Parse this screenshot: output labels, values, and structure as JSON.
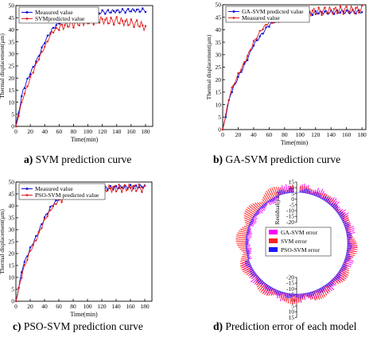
{
  "captions": {
    "a": {
      "letter": "a)",
      "text": "SVM prediction curve"
    },
    "b": {
      "letter": "b)",
      "text": "GA-SVM prediction curve"
    },
    "c": {
      "letter": "c)",
      "text": "PSO-SVM prediction curve"
    },
    "d": {
      "letter": "d)",
      "text": "Prediction error of each model"
    }
  },
  "colors": {
    "measured": "#1010d0",
    "predicted": "#e02020",
    "ga": "#ff00ff",
    "svm": "#ff2020",
    "pso": "#1a1aff"
  },
  "chart_data": [
    {
      "id": "a",
      "type": "line",
      "xlabel": "Time(min)",
      "ylabel": "Thermal displacement(μm)",
      "xlim": [
        0,
        190
      ],
      "ylim": [
        0,
        50
      ],
      "xticks": [
        0,
        20,
        40,
        60,
        80,
        100,
        120,
        140,
        160,
        180
      ],
      "yticks": [
        0,
        5,
        10,
        15,
        20,
        25,
        30,
        35,
        40,
        45,
        50
      ],
      "legend": [
        "Measured value",
        "SVMpredicted value"
      ],
      "legend_position": "top-left",
      "series": [
        {
          "name": "Measured value",
          "color": "#1010d0",
          "marker": "square",
          "x": [
            0,
            10,
            20,
            30,
            40,
            50,
            60,
            70,
            80,
            90,
            100,
            110,
            120,
            130,
            140,
            150,
            160,
            170,
            180
          ],
          "y": [
            0,
            15,
            22,
            28,
            35,
            40,
            43,
            44.5,
            45.5,
            46,
            46.5,
            47,
            47.3,
            47.5,
            47.7,
            47.8,
            48,
            48,
            48.1
          ]
        },
        {
          "name": "SVMpredicted value",
          "color": "#e02020",
          "marker": "circle",
          "x": [
            0,
            10,
            20,
            30,
            40,
            50,
            60,
            70,
            80,
            90,
            100,
            110,
            120,
            130,
            140,
            150,
            160,
            170,
            180
          ],
          "y": [
            0,
            12,
            20,
            27,
            33,
            39,
            41,
            42,
            42.5,
            43,
            43.5,
            43.8,
            44,
            43.5,
            43.8,
            43.2,
            42.8,
            42.5,
            41
          ]
        }
      ]
    },
    {
      "id": "b",
      "type": "line",
      "xlabel": "Time(min)",
      "ylabel": "Thermal displacement(μm)",
      "xlim": [
        0,
        185
      ],
      "ylim": [
        0,
        50
      ],
      "xticks": [
        0,
        20,
        40,
        60,
        80,
        100,
        120,
        140,
        160,
        180
      ],
      "yticks": [
        0,
        5,
        10,
        15,
        20,
        25,
        30,
        35,
        40,
        45,
        50
      ],
      "legend": [
        "GA-SVM predicted value",
        "Measured value"
      ],
      "legend_position": "top-left",
      "series": [
        {
          "name": "GA-SVM predicted value",
          "color": "#1010d0",
          "marker": "square",
          "x": [
            0,
            10,
            20,
            30,
            40,
            50,
            60,
            70,
            80,
            90,
            100,
            110,
            120,
            130,
            140,
            150,
            160,
            170,
            180
          ],
          "y": [
            0,
            14,
            21,
            27,
            34,
            38,
            42,
            44,
            45,
            46,
            46.3,
            46.5,
            46.8,
            47,
            47,
            47.2,
            47.3,
            47.2,
            47.3
          ]
        },
        {
          "name": "Measured value",
          "color": "#e02020",
          "marker": "circle",
          "x": [
            0,
            10,
            20,
            30,
            40,
            50,
            60,
            70,
            80,
            90,
            100,
            110,
            120,
            130,
            140,
            150,
            160,
            170,
            180
          ],
          "y": [
            0,
            15,
            22,
            28,
            35,
            40,
            43,
            44.5,
            45.5,
            46,
            46.5,
            47,
            47.3,
            47.5,
            47.7,
            47.8,
            48,
            48,
            48.1
          ]
        }
      ]
    },
    {
      "id": "c",
      "type": "line",
      "xlabel": "Time(min)",
      "ylabel": "Thermal displacement(μm)",
      "xlim": [
        0,
        190
      ],
      "ylim": [
        0,
        50
      ],
      "xticks": [
        0,
        20,
        40,
        60,
        80,
        100,
        120,
        140,
        160,
        180
      ],
      "yticks": [
        0,
        5,
        10,
        15,
        20,
        25,
        30,
        35,
        40,
        45,
        50
      ],
      "legend": [
        "Measured value",
        "PSO-SVM predicted value"
      ],
      "legend_position": "top-left",
      "series": [
        {
          "name": "Measured value",
          "color": "#1010d0",
          "marker": "square",
          "x": [
            0,
            10,
            20,
            30,
            40,
            50,
            60,
            70,
            80,
            90,
            100,
            110,
            120,
            130,
            140,
            150,
            160,
            170,
            180
          ],
          "y": [
            0,
            15,
            22,
            28,
            35,
            40,
            43,
            44.5,
            45.5,
            46,
            46.5,
            47,
            47.3,
            47.5,
            47.7,
            47.8,
            48,
            48,
            48.1
          ]
        },
        {
          "name": "PSO-SVM predicted value",
          "color": "#e02020",
          "marker": "circle",
          "x": [
            0,
            10,
            20,
            30,
            40,
            50,
            60,
            70,
            80,
            90,
            100,
            110,
            120,
            130,
            140,
            150,
            160,
            170,
            180
          ],
          "y": [
            0,
            13,
            21,
            27,
            34,
            39,
            42.5,
            44,
            45,
            45.8,
            46.2,
            46.6,
            47,
            47.2,
            47.3,
            47.4,
            47.6,
            47.5,
            47.2
          ]
        }
      ]
    },
    {
      "id": "d",
      "type": "polar-bar",
      "ylabel": "Residual(μm)",
      "ticks_top": [
        "15",
        "10",
        "5",
        "0",
        "-5",
        "-10",
        "-15",
        "-20"
      ],
      "ticks_bottom": [
        "-20",
        "-15",
        "-10",
        "-5",
        "0",
        "5",
        "10",
        "15"
      ],
      "legend": [
        "GA-SVM error",
        "SVM error",
        "PSO-SVM error"
      ],
      "legend_position": "center-left",
      "series": [
        {
          "name": "GA-SVM error",
          "color": "#ff00ff"
        },
        {
          "name": "SVM error",
          "color": "#ff2020"
        },
        {
          "name": "PSO-SVM error",
          "color": "#1a1aff"
        }
      ]
    }
  ]
}
